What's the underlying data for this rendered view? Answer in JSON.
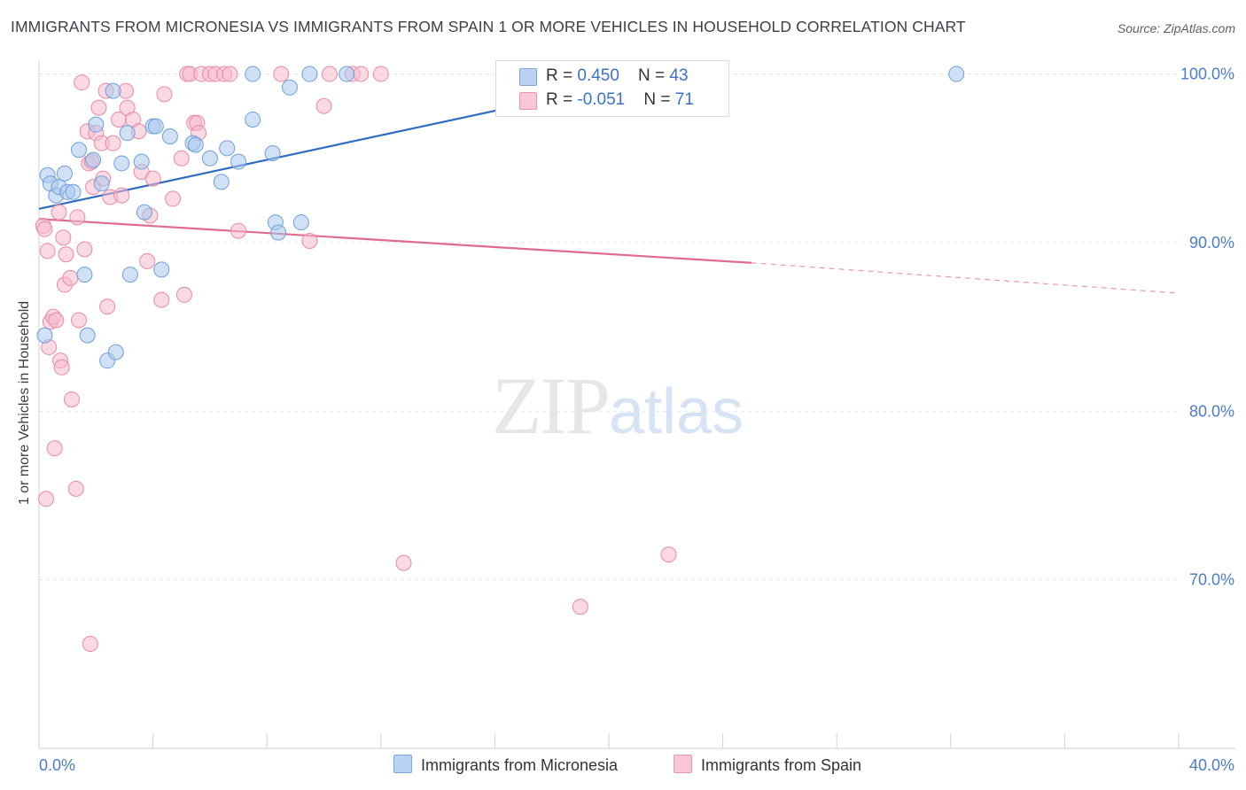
{
  "header": {
    "title": "IMMIGRANTS FROM MICRONESIA VS IMMIGRANTS FROM SPAIN 1 OR MORE VEHICLES IN HOUSEHOLD CORRELATION CHART",
    "source": "Source: ZipAtlas.com"
  },
  "watermark": {
    "zip": "ZIP",
    "atlas": "atlas"
  },
  "legend": {
    "micronesia": {
      "r_label": "R = ",
      "r_value": "0.450",
      "n_label": "N = ",
      "n_value": "43"
    },
    "spain": {
      "r_label": "R = ",
      "r_value": "-0.051",
      "n_label": "N = ",
      "n_value": "71"
    }
  },
  "colors": {
    "blue_fill": "#a9c8ee",
    "blue_stroke": "#6f9fd8",
    "blue_line": "#2f6cc4",
    "pink_fill": "#f6b9cc",
    "pink_stroke": "#e98aa8",
    "pink_line": "#e06b92",
    "axis_text": "#4a7cc7",
    "grid": "#e3e5e9"
  },
  "chart_data": {
    "type": "scatter",
    "title": "IMMIGRANTS FROM MICRONESIA VS IMMIGRANTS FROM SPAIN 1 OR MORE VEHICLES IN HOUSEHOLD CORRELATION CHART",
    "xlabel": "",
    "ylabel": "1 or more Vehicles in Household",
    "xlim": [
      0,
      40
    ],
    "ylim": [
      60,
      101.5
    ],
    "x_tick_labels": [
      "0.0%",
      "40.0%"
    ],
    "y_ticks": [
      70,
      80,
      90,
      100
    ],
    "y_tick_labels": [
      "70.0%",
      "80.0%",
      "90.0%",
      "100.0%"
    ],
    "grid": true,
    "legend_position": "top-center",
    "series": [
      {
        "name": "Immigrants from Micronesia",
        "color": "#a9c8ee",
        "trend": {
          "x": [
            0,
            22
          ],
          "y": [
            92.0,
            100.0
          ],
          "dashed_extension": false
        },
        "points": [
          [
            0.2,
            84.5
          ],
          [
            0.3,
            94.0
          ],
          [
            0.4,
            93.5
          ],
          [
            0.6,
            92.8
          ],
          [
            0.7,
            93.3
          ],
          [
            0.9,
            94.1
          ],
          [
            1.0,
            93.0
          ],
          [
            1.2,
            93.0
          ],
          [
            1.4,
            95.5
          ],
          [
            1.6,
            88.1
          ],
          [
            1.7,
            84.5
          ],
          [
            1.9,
            94.9
          ],
          [
            2.0,
            97.0
          ],
          [
            2.2,
            93.5
          ],
          [
            2.4,
            83.0
          ],
          [
            2.6,
            99.0
          ],
          [
            2.7,
            83.5
          ],
          [
            2.9,
            94.7
          ],
          [
            3.1,
            96.5
          ],
          [
            3.2,
            88.1
          ],
          [
            3.6,
            94.8
          ],
          [
            3.7,
            91.8
          ],
          [
            4.0,
            96.9
          ],
          [
            4.1,
            96.9
          ],
          [
            4.3,
            88.4
          ],
          [
            4.6,
            96.3
          ],
          [
            5.4,
            95.9
          ],
          [
            5.5,
            95.8
          ],
          [
            6.0,
            95.0
          ],
          [
            6.4,
            93.6
          ],
          [
            6.6,
            95.6
          ],
          [
            7.0,
            94.8
          ],
          [
            7.5,
            97.3
          ],
          [
            7.5,
            100.0
          ],
          [
            8.2,
            95.3
          ],
          [
            8.3,
            91.2
          ],
          [
            8.4,
            90.6
          ],
          [
            8.8,
            99.2
          ],
          [
            9.2,
            91.2
          ],
          [
            9.5,
            100.0
          ],
          [
            10.8,
            100.0
          ],
          [
            18.5,
            100.0
          ],
          [
            32.2,
            100.0
          ]
        ]
      },
      {
        "name": "Immigrants from Spain",
        "color": "#f6b9cc",
        "trend": {
          "x": [
            0,
            25
          ],
          "y": [
            91.4,
            88.8
          ],
          "dashed_extension_to_x": 40,
          "dashed_extension_y": 87.0
        },
        "points": [
          [
            0.15,
            91.0
          ],
          [
            0.2,
            90.8
          ],
          [
            0.25,
            74.8
          ],
          [
            0.3,
            89.5
          ],
          [
            0.35,
            83.8
          ],
          [
            0.4,
            85.3
          ],
          [
            0.5,
            85.6
          ],
          [
            0.55,
            77.8
          ],
          [
            0.6,
            85.4
          ],
          [
            0.7,
            91.8
          ],
          [
            0.75,
            83.0
          ],
          [
            0.8,
            82.6
          ],
          [
            0.85,
            90.3
          ],
          [
            0.9,
            87.5
          ],
          [
            0.95,
            89.3
          ],
          [
            1.1,
            87.9
          ],
          [
            1.15,
            80.7
          ],
          [
            1.3,
            75.4
          ],
          [
            1.35,
            91.5
          ],
          [
            1.4,
            85.4
          ],
          [
            1.5,
            99.5
          ],
          [
            1.6,
            89.6
          ],
          [
            1.7,
            96.6
          ],
          [
            1.75,
            94.7
          ],
          [
            1.8,
            66.2
          ],
          [
            1.85,
            94.8
          ],
          [
            1.9,
            93.3
          ],
          [
            2.0,
            96.5
          ],
          [
            2.1,
            98.0
          ],
          [
            2.2,
            95.9
          ],
          [
            2.25,
            93.8
          ],
          [
            2.35,
            99.0
          ],
          [
            2.4,
            86.2
          ],
          [
            2.5,
            92.7
          ],
          [
            2.6,
            95.9
          ],
          [
            2.8,
            97.3
          ],
          [
            2.9,
            92.8
          ],
          [
            3.05,
            99.0
          ],
          [
            3.1,
            98.0
          ],
          [
            3.3,
            97.3
          ],
          [
            3.5,
            96.6
          ],
          [
            3.6,
            94.2
          ],
          [
            3.8,
            88.9
          ],
          [
            3.9,
            91.6
          ],
          [
            4.0,
            93.8
          ],
          [
            4.3,
            86.6
          ],
          [
            4.4,
            98.8
          ],
          [
            4.7,
            92.6
          ],
          [
            5.0,
            95.0
          ],
          [
            5.1,
            86.9
          ],
          [
            5.2,
            100.0
          ],
          [
            5.3,
            100.0
          ],
          [
            5.45,
            97.1
          ],
          [
            5.55,
            97.1
          ],
          [
            5.6,
            96.5
          ],
          [
            5.7,
            100.0
          ],
          [
            6.0,
            100.0
          ],
          [
            6.2,
            100.0
          ],
          [
            6.5,
            100.0
          ],
          [
            6.7,
            100.0
          ],
          [
            7.0,
            90.7
          ],
          [
            8.5,
            100.0
          ],
          [
            9.5,
            90.1
          ],
          [
            10.0,
            98.1
          ],
          [
            10.2,
            100.0
          ],
          [
            11.0,
            100.0
          ],
          [
            11.3,
            100.0
          ],
          [
            12.0,
            100.0
          ],
          [
            12.8,
            71.0
          ],
          [
            19.0,
            68.4
          ],
          [
            22.1,
            71.5
          ]
        ]
      }
    ]
  }
}
